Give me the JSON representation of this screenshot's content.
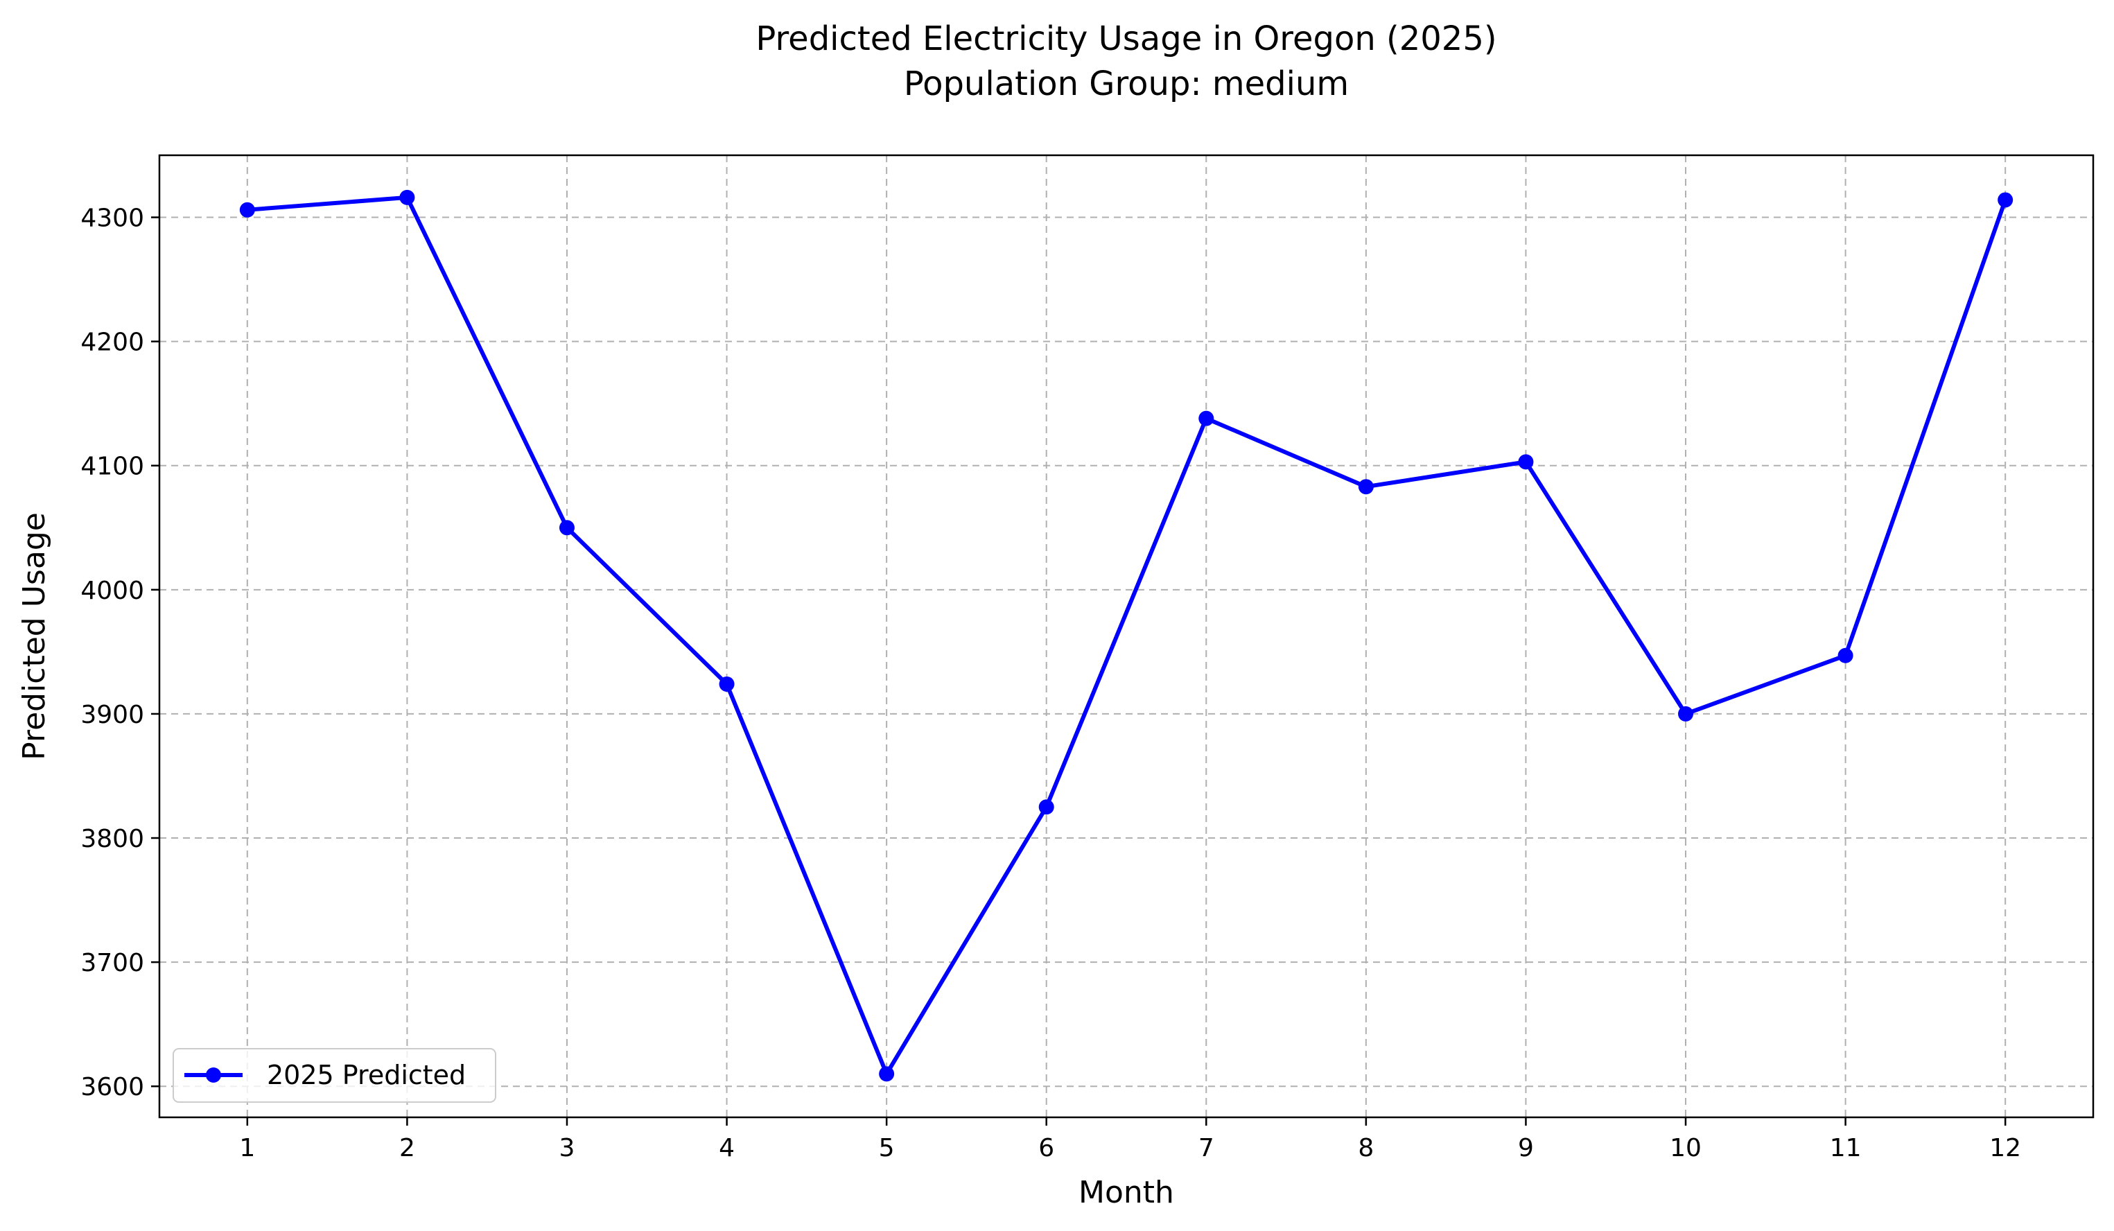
{
  "chart_data": {
    "type": "line",
    "title": "Predicted Electricity Usage in Oregon (2025)",
    "subtitle": "Population Group: medium",
    "xlabel": "Month",
    "ylabel": "Predicted Usage",
    "x": [
      1,
      2,
      3,
      4,
      5,
      6,
      7,
      8,
      9,
      10,
      11,
      12
    ],
    "x_ticks": [
      "1",
      "2",
      "3",
      "4",
      "5",
      "6",
      "7",
      "8",
      "9",
      "10",
      "11",
      "12"
    ],
    "y_ticks": [
      "3600",
      "3700",
      "3800",
      "3900",
      "4000",
      "4100",
      "4200",
      "4300"
    ],
    "xlim": [
      0.45,
      12.55
    ],
    "ylim": [
      3575,
      4350
    ],
    "grid": true,
    "grid_style": "dashed",
    "legend_position": "lower-left",
    "series": [
      {
        "name": "2025 Predicted",
        "color": "#0000ff",
        "marker": "circle",
        "values": [
          4306,
          4316,
          4050,
          3924,
          3610,
          3825,
          4138,
          4083,
          4103,
          3900,
          3947,
          4314
        ]
      }
    ]
  }
}
